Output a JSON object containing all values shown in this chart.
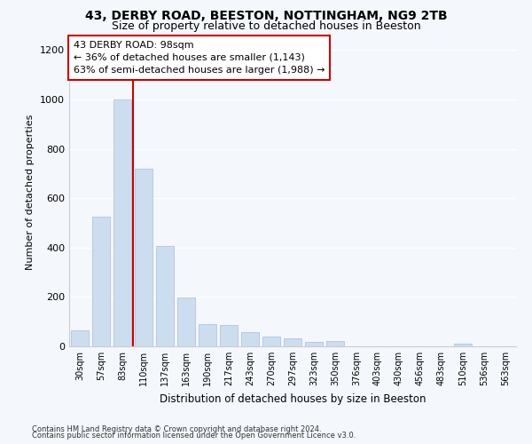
{
  "title1": "43, DERBY ROAD, BEESTON, NOTTINGHAM, NG9 2TB",
  "title2": "Size of property relative to detached houses in Beeston",
  "xlabel": "Distribution of detached houses by size in Beeston",
  "ylabel": "Number of detached properties",
  "categories": [
    "30sqm",
    "57sqm",
    "83sqm",
    "110sqm",
    "137sqm",
    "163sqm",
    "190sqm",
    "217sqm",
    "243sqm",
    "270sqm",
    "297sqm",
    "323sqm",
    "350sqm",
    "376sqm",
    "403sqm",
    "430sqm",
    "456sqm",
    "483sqm",
    "510sqm",
    "536sqm",
    "563sqm"
  ],
  "values": [
    65,
    525,
    1000,
    720,
    405,
    197,
    90,
    88,
    58,
    40,
    32,
    17,
    20,
    0,
    0,
    0,
    0,
    0,
    12,
    0,
    0
  ],
  "bar_color": "#ccddf0",
  "bar_edge_color": "#aabbdd",
  "vline_x_index": 2,
  "vline_color": "#cc0000",
  "annotation_line1": "43 DERBY ROAD: 98sqm",
  "annotation_line2": "← 36% of detached houses are smaller (1,143)",
  "annotation_line3": "63% of semi-detached houses are larger (1,988) →",
  "annotation_box_facecolor": "#ffffff",
  "annotation_box_edgecolor": "#cc0000",
  "ylim": [
    0,
    1250
  ],
  "yticks": [
    0,
    200,
    400,
    600,
    800,
    1000,
    1200
  ],
  "footer1": "Contains HM Land Registry data © Crown copyright and database right 2024.",
  "footer2": "Contains public sector information licensed under the Open Government Licence v3.0.",
  "bg_color": "#f4f7fc",
  "plot_bg_color": "#f4f7fc",
  "grid_color": "#ffffff",
  "title1_fontsize": 10,
  "title2_fontsize": 9,
  "ylabel_fontsize": 8,
  "xlabel_fontsize": 8.5,
  "ytick_fontsize": 8,
  "xtick_fontsize": 7,
  "annotation_fontsize": 8
}
